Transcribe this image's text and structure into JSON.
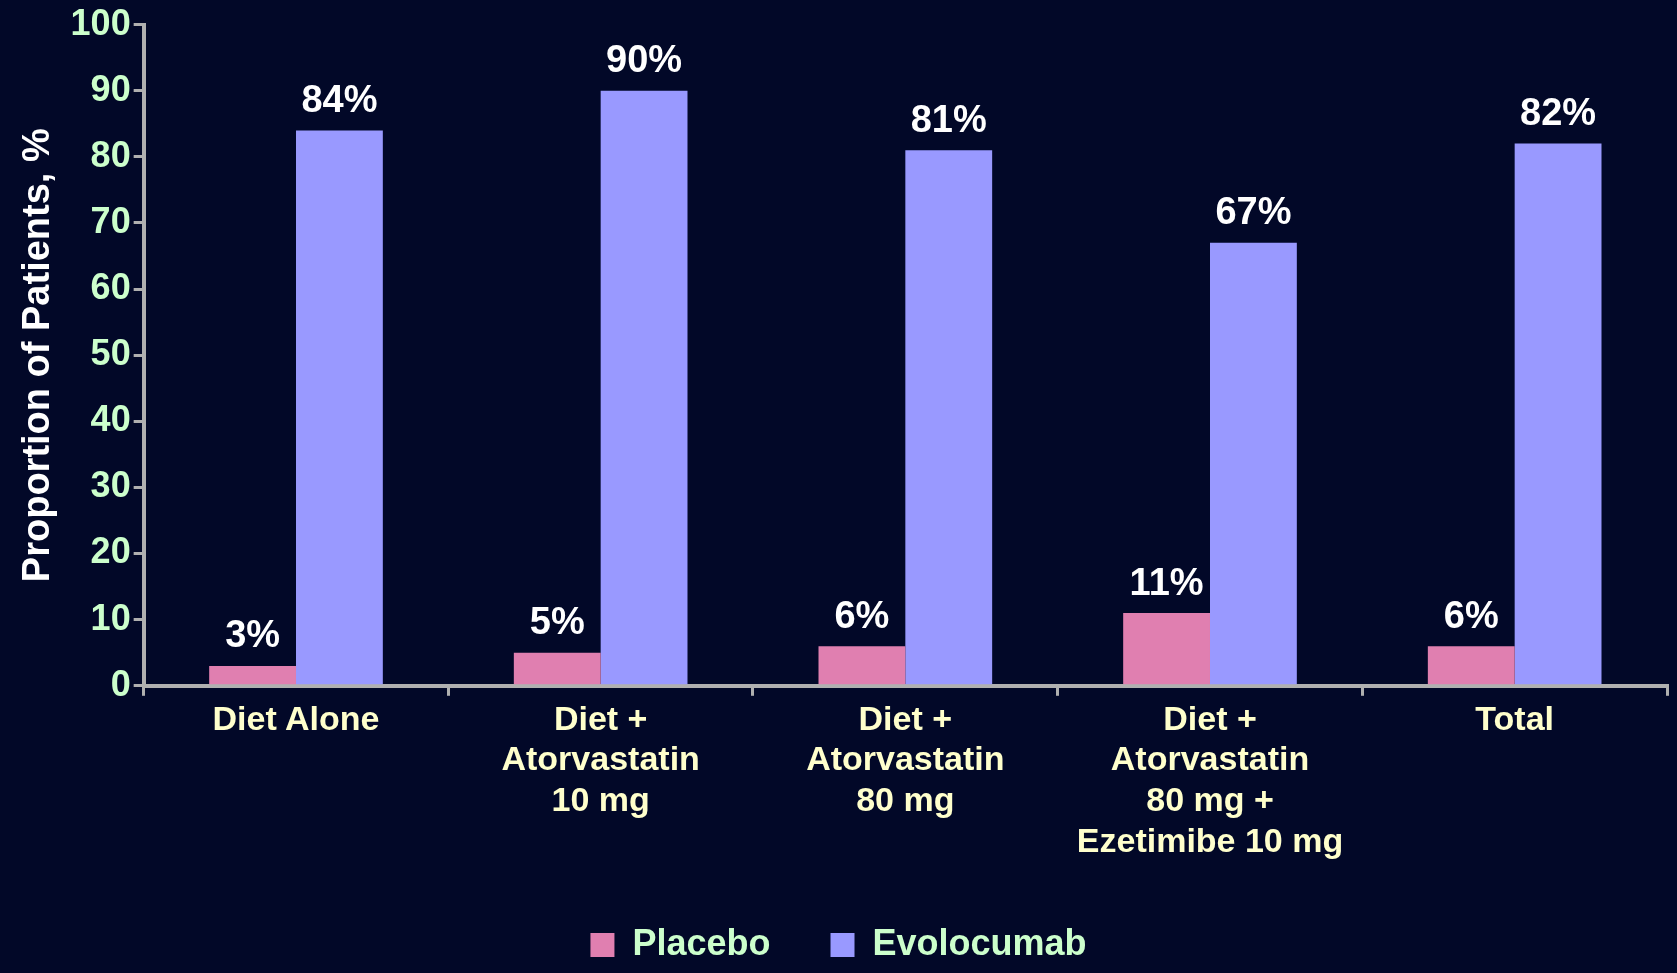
{
  "chart_data": {
    "type": "bar",
    "ylabel": "Proportion of Patients, %",
    "categories": [
      "Diet Alone",
      "Diet +\nAtorvastatin\n10 mg",
      "Diet +\nAtorvastatin\n80 mg",
      "Diet +\nAtorvastatin\n80 mg +\nEzetimibe 10 mg",
      "Total"
    ],
    "series": [
      {
        "name": "Placebo",
        "color": "#e07fb0",
        "values": [
          3,
          5,
          6,
          11,
          6
        ],
        "value_labels": [
          "3%",
          "5%",
          "6%",
          "11%",
          "6%"
        ]
      },
      {
        "name": "Evolocumab",
        "color": "#9999ff",
        "values": [
          84,
          90,
          81,
          67,
          82
        ],
        "value_labels": [
          "84%",
          "90%",
          "81%",
          "67%",
          "82%"
        ]
      }
    ],
    "ylim": [
      0,
      100
    ],
    "yticks": [
      0,
      10,
      20,
      30,
      40,
      50,
      60,
      70,
      80,
      90,
      100
    ],
    "grid": false,
    "legend": "bottom"
  }
}
